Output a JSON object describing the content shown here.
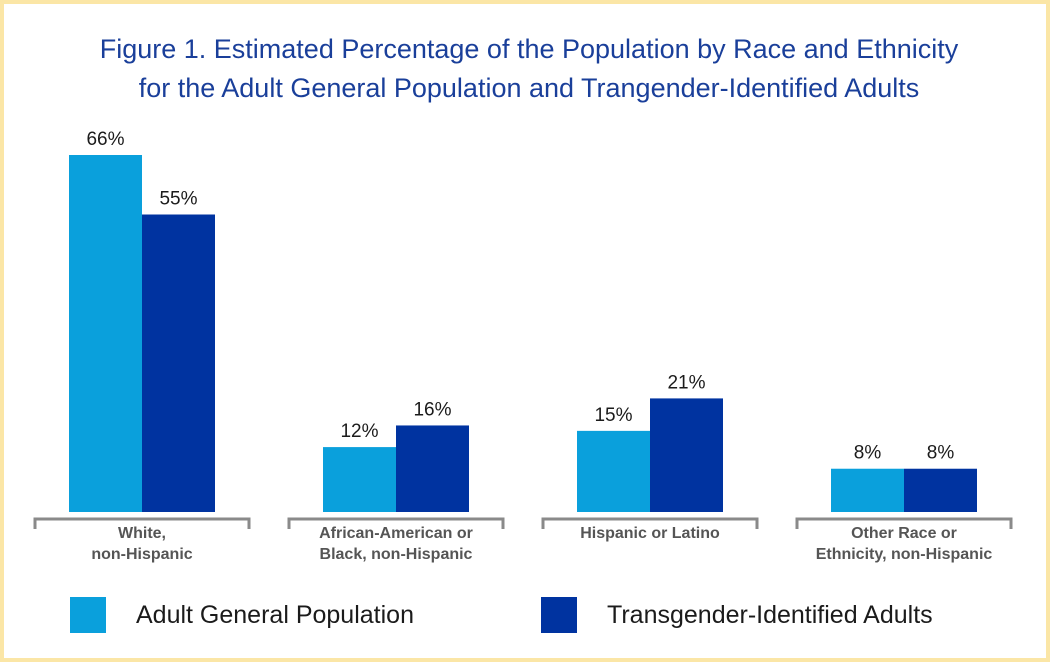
{
  "title_line1": "Figure 1. Estimated Percentage of the Population by Race and Ethnicity",
  "title_line2": "for the Adult General Population and Trangender-Identified Adults",
  "colors": {
    "series1": "#0aa0dc",
    "series2": "#0033a0",
    "title": "#1a3f9a",
    "border": "#fbe6a6",
    "bracket": "#8a8a8a"
  },
  "chart_data": {
    "type": "bar",
    "title": "Figure 1. Estimated Percentage of the Population by Race and Ethnicity for the Adult General Population and Trangender-Identified Adults",
    "categories": [
      [
        "White,",
        "non-Hispanic"
      ],
      [
        "African-American or",
        "Black, non-Hispanic"
      ],
      [
        "Hispanic or Latino"
      ],
      [
        "Other Race or",
        "Ethnicity, non-Hispanic"
      ]
    ],
    "series": [
      {
        "name": "Adult General Population",
        "values": [
          66,
          12,
          15,
          8
        ],
        "labels": [
          "66%",
          "12%",
          "15%",
          "8%"
        ]
      },
      {
        "name": "Transgender-Identified Adults",
        "values": [
          55,
          16,
          21,
          8
        ],
        "labels": [
          "55%",
          "16%",
          "21%",
          "8%"
        ]
      }
    ],
    "ylim": [
      0,
      66
    ],
    "grid": false,
    "legend": "bottom"
  }
}
